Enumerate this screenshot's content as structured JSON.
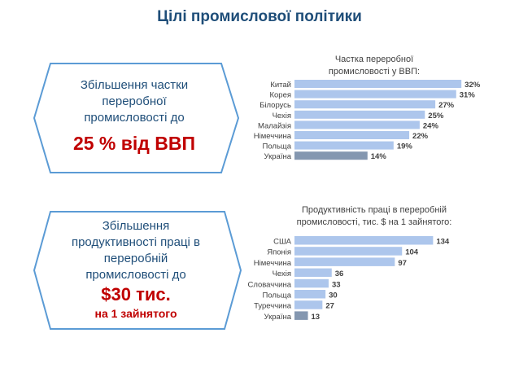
{
  "page_title": "Цілі промислової політики",
  "colors": {
    "title": "#1f4e79",
    "accent_red": "#c00000",
    "bar": "#adc6ec",
    "bar_ukraine": "#8497b0",
    "hex_border": "#5b9bd5"
  },
  "goal1": {
    "line1": "Збільшення частки",
    "line2": "переробної",
    "line3": "промисловості до",
    "target": "25 % від ВВП"
  },
  "goal2": {
    "line1": "Збільшення",
    "line2": "продуктивності праці в",
    "line3": "переробній",
    "line4": "промисловості до",
    "target": "$30 тис.",
    "sub": "на 1 зайнятого"
  },
  "chart_data": [
    {
      "type": "bar",
      "orientation": "horizontal",
      "title_line1": "Частка переробної",
      "title_line2": "промисловості у ВВП:",
      "categories": [
        "Китай",
        "Корея",
        "Білорусь",
        "Чехія",
        "Малайзія",
        "Німеччина",
        "Польща",
        "Україна"
      ],
      "values": [
        32,
        31,
        27,
        25,
        24,
        22,
        19,
        14
      ],
      "labels": [
        "32%",
        "31%",
        "27%",
        "25%",
        "24%",
        "22%",
        "19%",
        "14%"
      ],
      "xlim": [
        0,
        34
      ]
    },
    {
      "type": "bar",
      "orientation": "horizontal",
      "title_line1": "Продуктивність праці в переробній",
      "title_line2": "промисловості, тис. $ на 1 зайнятого:",
      "categories": [
        "США",
        "Японія",
        "Німеччина",
        "Чехія",
        "Словаччина",
        "Польща",
        "Туреччина",
        "Україна"
      ],
      "values": [
        134,
        104,
        97,
        36,
        33,
        30,
        27,
        13
      ],
      "labels": [
        "134",
        "104",
        "97",
        "36",
        "33",
        "30",
        "27",
        "13"
      ],
      "xlim": [
        0,
        140
      ]
    }
  ]
}
